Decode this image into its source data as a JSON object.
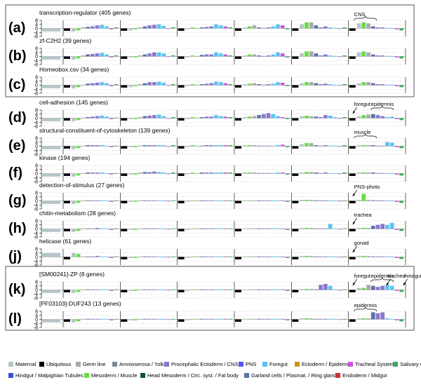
{
  "tick_labels": [
    "8",
    "4",
    "0",
    "-4",
    "-8"
  ],
  "colors": {
    "Maternal": "#b3c5c7",
    "Ubiquitous": "#000000",
    "Germ line": "#a8aaaa",
    "Amnioserosa / Yolk": "#7a8c96",
    "Procephalic Ectoderm / CNS": "#8877cc",
    "PNS": "#5555ee",
    "Foregut": "#5cc3f0",
    "Ectoderm / Epidermis": "#c8961a",
    "Tracheal System": "#cc55dd",
    "Salivary Gland": "#3aa860",
    "Hindgut / Malpighian Tubules": "#3355cc",
    "Mesoderm / Muscle": "#66dd44",
    "Head Mesoderm / Circ. syst. / Fat body": "#115533",
    "Garland cells / Plasmat. / Ring gland": "#5a73a6",
    "Endoderm / Midgut": "#cc3333"
  },
  "legend": [
    "Maternal",
    "Ubiquitous",
    "Germ line",
    "Amnioserosa / Yolk",
    "Procephalic Ectoderm / CNS",
    "PNS",
    "Foregut",
    "Ectoderm / Epidermis",
    "Tracheal System",
    "Salivary Gland",
    "Hindgut / Malpighian Tubules",
    "Mesoderm / Muscle",
    "Head Mesoderm / Circ. syst. / Fat body",
    "Garland cells / Plasmat. / Ring gland",
    "Endoderm / Midgut"
  ],
  "chart_data": {
    "type": "bar",
    "ylim": [
      -8,
      8
    ],
    "stages": 6,
    "panels": [
      {
        "letter": "(a)",
        "title": "transcription-regulator (405 genes)",
        "annotations": [
          {
            "text": "CNS",
            "kind": "brace"
          }
        ],
        "bars": [
          [
            -3,
            -2,
            1,
            1.5,
            2,
            3,
            3.5,
            2,
            -1,
            1
          ],
          [
            -2,
            -1,
            1,
            2,
            3,
            3.5,
            4,
            2.5,
            -0.5,
            1
          ],
          [
            -1,
            1,
            0.5,
            1,
            1.5,
            2,
            4,
            3,
            2,
            1
          ],
          [
            1,
            2,
            3,
            1,
            0.5,
            1,
            2,
            4,
            3,
            -1
          ],
          [
            4,
            6,
            6,
            3,
            1,
            2,
            1,
            0.5,
            -0.5,
            1
          ],
          [
            5,
            6,
            5,
            2,
            1,
            1,
            0.5,
            0.5,
            -1,
            -2
          ]
        ]
      },
      {
        "letter": "(b)",
        "title": "zf-C2H2 (39 genes)",
        "annotations": [],
        "bars": [
          [
            -3,
            -2,
            1,
            2,
            2.5,
            3,
            3.5,
            2,
            -1,
            1
          ],
          [
            -1,
            -1,
            1,
            2,
            3,
            4,
            4,
            3,
            -0.5,
            1
          ],
          [
            -1,
            1,
            0.5,
            1.5,
            2,
            2,
            4,
            3,
            2,
            1
          ],
          [
            1,
            2,
            2,
            1,
            0.5,
            1,
            2,
            4,
            3,
            -1
          ],
          [
            3,
            5,
            5,
            3,
            1,
            2,
            1,
            0.5,
            -0.5,
            1
          ],
          [
            4,
            5,
            4,
            2,
            1,
            1,
            0.5,
            0.5,
            -1,
            -2
          ]
        ]
      },
      {
        "letter": "(c)",
        "title": "Homeobox.csv (34 genes)",
        "annotations": [],
        "bars": [
          [
            -3,
            -2,
            0.5,
            1.5,
            2,
            2.5,
            3,
            2,
            -1,
            1
          ],
          [
            -2,
            -1,
            1,
            2,
            3,
            3,
            3.5,
            2.5,
            -0.5,
            1
          ],
          [
            -1,
            1,
            0.5,
            1,
            1.5,
            2,
            3.5,
            3,
            2,
            1
          ],
          [
            1,
            1.5,
            2,
            1,
            0.5,
            1,
            1.5,
            3,
            2.5,
            -1
          ],
          [
            2,
            3,
            3,
            2,
            1,
            1.5,
            1,
            0.5,
            -0.5,
            1
          ],
          [
            2,
            3,
            3,
            2,
            1,
            1,
            0.5,
            0.5,
            -1,
            -2
          ]
        ]
      },
      {
        "letter": "(d)",
        "title": "cell-adhesion (145 genes)",
        "annotations": [
          {
            "text": "foregut",
            "kind": "arrow"
          },
          {
            "text": "epidermis",
            "kind": "brace"
          }
        ],
        "bars": [
          [
            -3,
            -2,
            0.5,
            1,
            1.5,
            2,
            2.5,
            1.5,
            -1,
            0.5
          ],
          [
            -1,
            -1,
            1,
            2,
            2.5,
            3,
            3.5,
            2,
            -0.5,
            1
          ],
          [
            -1,
            1,
            0.5,
            1,
            1.5,
            1.5,
            3,
            2,
            1.5,
            1
          ],
          [
            1,
            1.5,
            2,
            3,
            4,
            5,
            4,
            2,
            1,
            -1
          ],
          [
            2,
            2.5,
            2,
            1.5,
            1,
            3,
            2.5,
            1,
            -0.5,
            1
          ],
          [
            2,
            3,
            3.5,
            4,
            3,
            2,
            1,
            1.5,
            -1,
            -2
          ]
        ]
      },
      {
        "letter": "(e)",
        "title": "structural-constituent-of-cytoskeleton (139 genes)",
        "annotations": [
          {
            "text": "muscle",
            "kind": "brace"
          }
        ],
        "bars": [
          [
            -3,
            -2,
            0.5,
            1,
            1,
            1,
            1,
            0.5,
            -1,
            0.5
          ],
          [
            -1,
            -1,
            0.5,
            1,
            1,
            1,
            1,
            1,
            -0.5,
            1
          ],
          [
            -1,
            1,
            0.5,
            0.5,
            1,
            1,
            1,
            1,
            1,
            1
          ],
          [
            1,
            1,
            1,
            0.5,
            0.5,
            0.5,
            0.5,
            1,
            1.5,
            -1
          ],
          [
            2,
            3,
            3,
            1,
            0.5,
            1,
            0.5,
            0.5,
            -0.5,
            1
          ],
          [
            1,
            1,
            1,
            1,
            0.5,
            0.5,
            4,
            3.5,
            -1,
            -2
          ]
        ]
      },
      {
        "letter": "(f)",
        "title": "kinase (194 genes)",
        "annotations": [],
        "bars": [
          [
            -3,
            -2,
            0.5,
            1,
            1,
            1,
            1,
            0.5,
            -1,
            0.5
          ],
          [
            -1,
            -1,
            1,
            1.5,
            1.5,
            2,
            1.5,
            1,
            -0.5,
            1
          ],
          [
            -1,
            1,
            0.5,
            1,
            1,
            1,
            1,
            1,
            1,
            1
          ],
          [
            1,
            1,
            1,
            0.5,
            0.5,
            0.5,
            0.5,
            1,
            1,
            -1
          ],
          [
            1,
            1.5,
            1.5,
            1,
            0.5,
            1,
            0.5,
            0.5,
            -0.5,
            1
          ],
          [
            1,
            1,
            1,
            1,
            0.5,
            0.5,
            0.5,
            0.5,
            -1,
            -2
          ]
        ]
      },
      {
        "letter": "(g)",
        "title": "detection-of-stimulus (27 genes)",
        "annotations": [
          {
            "text": "PNS-photo",
            "kind": "arrow"
          }
        ],
        "bars": [
          [
            -3,
            -2,
            0.5,
            0.5,
            0.5,
            0.5,
            0.5,
            0.5,
            -1,
            0.5
          ],
          [
            -1,
            -1,
            0.5,
            0.5,
            0.5,
            0.5,
            0.5,
            0.5,
            -0.5,
            0.5
          ],
          [
            -1,
            0.5,
            0.5,
            0.5,
            0.5,
            0.5,
            0.5,
            0.5,
            0.5,
            0.5
          ],
          [
            0.5,
            0.5,
            0.5,
            0.5,
            0.5,
            0.5,
            0.5,
            0.5,
            0.5,
            -1
          ],
          [
            1,
            1,
            1,
            0.5,
            0.5,
            0.5,
            0.5,
            0.5,
            -0.5,
            0.5
          ],
          [
            1,
            7,
            1,
            0.5,
            0.5,
            0.5,
            0.5,
            0.5,
            -1,
            -2
          ]
        ]
      },
      {
        "letter": "(h)",
        "title": "chitin-metabolism (28 genes)",
        "annotations": [
          {
            "text": "trachea",
            "kind": "arrow"
          }
        ],
        "bars": [
          [
            -3,
            -2,
            0.5,
            0.5,
            0.5,
            1,
            0.5,
            0.5,
            -1,
            0.5
          ],
          [
            -1,
            -1,
            0.5,
            0.5,
            0.5,
            0.5,
            0.5,
            0.5,
            -0.5,
            0.5
          ],
          [
            -1,
            0.5,
            0.5,
            0.5,
            0.5,
            0.5,
            0.5,
            0.5,
            0.5,
            0.5
          ],
          [
            0.5,
            0.5,
            0.5,
            0.5,
            0.5,
            0.5,
            0.5,
            0.5,
            0.5,
            -1
          ],
          [
            1,
            1,
            1,
            0.5,
            0.5,
            0.5,
            5,
            0.5,
            -0.5,
            0.5
          ],
          [
            1,
            1,
            1,
            3,
            4,
            5,
            4,
            6,
            -1,
            -2
          ]
        ]
      },
      {
        "letter": "(j)",
        "title": "helicase (61 genes)",
        "annotations": [
          {
            "text": "gonad",
            "kind": "arrow"
          }
        ],
        "bars": [
          [
            4,
            3,
            0.5,
            0.5,
            0.5,
            1,
            0.5,
            0.5,
            -1,
            0.5
          ],
          [
            -1,
            -1,
            0.5,
            0.5,
            0.5,
            0.5,
            0.5,
            0.5,
            -0.5,
            0.5
          ],
          [
            -1,
            0.5,
            0.5,
            0.5,
            0.5,
            0.5,
            0.5,
            0.5,
            0.5,
            0.5
          ],
          [
            0.5,
            0.5,
            0.5,
            0.5,
            0.5,
            0.5,
            0.5,
            0.5,
            0.5,
            -1
          ],
          [
            1,
            1,
            1,
            0.5,
            0.5,
            0.5,
            0.5,
            0.5,
            -0.5,
            0.5
          ],
          [
            1,
            1,
            1,
            0.5,
            0.5,
            0.5,
            0.5,
            0.5,
            -1,
            -2
          ]
        ]
      },
      {
        "letter": "(k)",
        "title": "[SM00241]-ZP (8 genes)",
        "annotations": [
          {
            "text": "foregut",
            "kind": "arrow"
          },
          {
            "text": "epidermis",
            "kind": "brace"
          },
          {
            "text": "trachea",
            "kind": "arrow"
          },
          {
            "text": "hindgut",
            "kind": "arrow"
          }
        ],
        "bars": [
          [
            -3,
            -2,
            0.5,
            0.5,
            0.5,
            0.5,
            0.5,
            0.5,
            -1,
            0.5
          ],
          [
            -1,
            -1,
            0.5,
            0.5,
            0.5,
            0.5,
            0.5,
            0.5,
            -0.5,
            0.5
          ],
          [
            -1,
            0.5,
            0.5,
            0.5,
            0.5,
            0.5,
            0.5,
            0.5,
            0.5,
            0.5
          ],
          [
            0.5,
            0.5,
            0.5,
            0.5,
            0.5,
            0.5,
            0.5,
            0.5,
            0.5,
            -1
          ],
          [
            1,
            1,
            1,
            0.5,
            5,
            6,
            4,
            0.5,
            -0.5,
            0.5
          ],
          [
            2,
            2,
            5,
            4,
            3,
            4,
            5,
            4,
            -1,
            -2
          ]
        ]
      },
      {
        "letter": "(l)",
        "title": "[PF03103]-DUF243 (13 genes)",
        "annotations": [
          {
            "text": "epidermis",
            "kind": "brace"
          }
        ],
        "bars": [
          [
            -3,
            -2,
            0.5,
            0.5,
            0.5,
            0.5,
            0.5,
            0.5,
            -1,
            0.5
          ],
          [
            -1,
            -1,
            0.5,
            0.5,
            0.5,
            0.5,
            0.5,
            0.5,
            -0.5,
            0.5
          ],
          [
            -1,
            0.5,
            0.5,
            0.5,
            0.5,
            0.5,
            0.5,
            0.5,
            0.5,
            0.5
          ],
          [
            0.5,
            0.5,
            0.5,
            0.5,
            0.5,
            0.5,
            0.5,
            0.5,
            0.5,
            -1
          ],
          [
            1,
            1,
            1,
            0.5,
            0.5,
            0.5,
            0.5,
            0.5,
            -0.5,
            0.5
          ],
          [
            1,
            1,
            1,
            7,
            6,
            7,
            1,
            0.5,
            -1,
            -2
          ]
        ]
      }
    ]
  }
}
